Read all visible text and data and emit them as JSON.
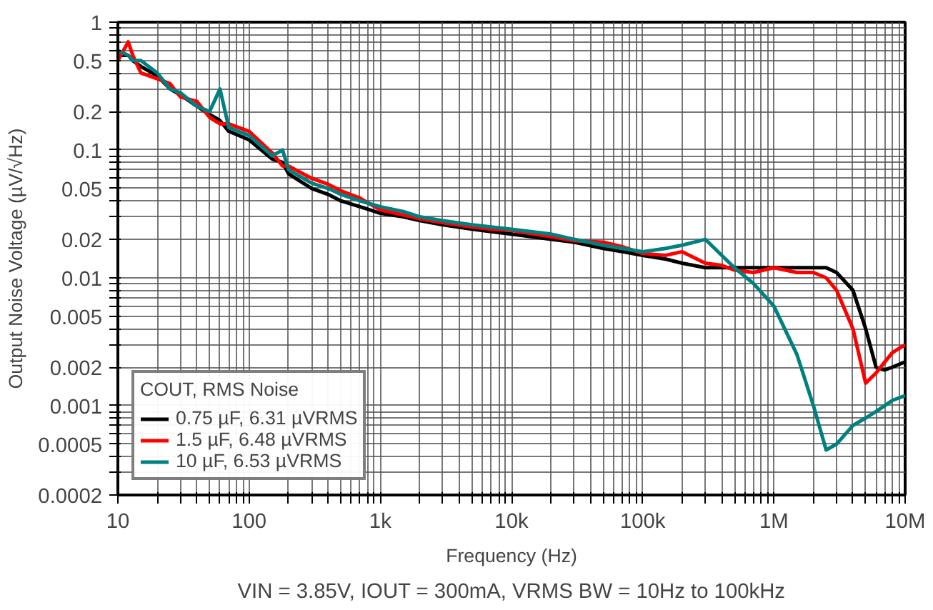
{
  "chart_data": {
    "type": "line",
    "xlabel": "Frequency (Hz)",
    "ylabel": "Output Noise Voltage (µV/√Hz)",
    "legend_title": "COUT, RMS Noise",
    "annotations": [
      "VIN = 3.85V, IOUT = 300mA, VRMS BW = 10Hz to 100kHz"
    ],
    "log": "xy",
    "grid": true,
    "legend": "bottom left",
    "line_style": "solid",
    "xlim": [
      10,
      10000000
    ],
    "ylim": [
      0.0002,
      1
    ],
    "xticks": [
      10,
      {
        "value": 20,
        "label": null
      },
      {
        "value": 30,
        "label": null
      },
      {
        "value": 40,
        "label": null
      },
      {
        "value": 50,
        "label": null
      },
      {
        "value": 60,
        "label": null
      },
      {
        "value": 70,
        "label": null
      },
      {
        "value": 80,
        "label": null
      },
      {
        "value": 90,
        "label": null
      },
      100,
      {
        "value": 200,
        "label": null
      },
      {
        "value": 300,
        "label": null
      },
      {
        "value": 400,
        "label": null
      },
      {
        "value": 500,
        "label": null
      },
      {
        "value": 600,
        "label": null
      },
      {
        "value": 700,
        "label": null
      },
      {
        "value": 800,
        "label": null
      },
      {
        "value": 900,
        "label": null
      },
      {
        "value": 1000,
        "label": "1k"
      },
      {
        "value": 2000,
        "label": null
      },
      {
        "value": 3000,
        "label": null
      },
      {
        "value": 4000,
        "label": null
      },
      {
        "value": 5000,
        "label": null
      },
      {
        "value": 6000,
        "label": null
      },
      {
        "value": 7000,
        "label": null
      },
      {
        "value": 8000,
        "label": null
      },
      {
        "value": 9000,
        "label": null
      },
      {
        "value": 10000,
        "label": "10k"
      },
      {
        "value": 20000,
        "label": null
      },
      {
        "value": 30000,
        "label": null
      },
      {
        "value": 40000,
        "label": null
      },
      {
        "value": 50000,
        "label": null
      },
      {
        "value": 60000,
        "label": null
      },
      {
        "value": 70000,
        "label": null
      },
      {
        "value": 80000,
        "label": null
      },
      {
        "value": 90000,
        "label": null
      },
      {
        "value": 100000,
        "label": "100k"
      },
      {
        "value": 200000,
        "label": null
      },
      {
        "value": 300000,
        "label": null
      },
      {
        "value": 400000,
        "label": null
      },
      {
        "value": 500000,
        "label": null
      },
      {
        "value": 600000,
        "label": null
      },
      {
        "value": 700000,
        "label": null
      },
      {
        "value": 800000,
        "label": null
      },
      {
        "value": 900000,
        "label": null
      },
      {
        "value": 1000000,
        "label": "1M"
      },
      {
        "value": 2000000,
        "label": null
      },
      {
        "value": 3000000,
        "label": null
      },
      {
        "value": 4000000,
        "label": null
      },
      {
        "value": 5000000,
        "label": null
      },
      {
        "value": 6000000,
        "label": null
      },
      {
        "value": 7000000,
        "label": null
      },
      {
        "value": 8000000,
        "label": null
      },
      {
        "value": 9000000,
        "label": null
      },
      {
        "value": 10000000,
        "label": "10M"
      }
    ],
    "yticks": [
      0.0002,
      {
        "value": 0.0003,
        "label": null
      },
      {
        "value": 0.0004,
        "label": null
      },
      0.0005,
      {
        "value": 0.0006,
        "label": null
      },
      {
        "value": 0.0007,
        "label": null
      },
      {
        "value": 0.0008,
        "label": null
      },
      {
        "value": 0.0009,
        "label": null
      },
      0.001,
      0.002,
      {
        "value": 0.003,
        "label": null
      },
      {
        "value": 0.004,
        "label": null
      },
      0.005,
      {
        "value": 0.006,
        "label": null
      },
      {
        "value": 0.007,
        "label": null
      },
      {
        "value": 0.008,
        "label": null
      },
      {
        "value": 0.009,
        "label": null
      },
      0.01,
      0.02,
      {
        "value": 0.03,
        "label": null
      },
      {
        "value": 0.04,
        "label": null
      },
      0.05,
      {
        "value": 0.06,
        "label": null
      },
      {
        "value": 0.07,
        "label": null
      },
      {
        "value": 0.08,
        "label": null
      },
      {
        "value": 0.09,
        "label": null
      },
      0.1,
      0.2,
      {
        "value": 0.3,
        "label": null
      },
      {
        "value": 0.4,
        "label": null
      },
      0.5,
      {
        "value": 0.6,
        "label": null
      },
      {
        "value": 0.7,
        "label": null
      },
      {
        "value": 0.8,
        "label": null
      },
      {
        "value": 0.9,
        "label": null
      },
      1
    ],
    "x": [
      10,
      12,
      13,
      15,
      20,
      25,
      30,
      40,
      50,
      60,
      70,
      100,
      150,
      180,
      200,
      300,
      400,
      500,
      700,
      1000,
      1500,
      2000,
      3000,
      5000,
      7000,
      10000,
      20000,
      30000,
      50000,
      70000,
      100000,
      150000,
      200000,
      300000,
      400000,
      500000,
      700000,
      1000000,
      1500000,
      2000000,
      2500000,
      3000000,
      4000000,
      5000000,
      6000000,
      7000000,
      8000000,
      10000000
    ],
    "series": [
      {
        "name": "0.75 µF, 6.31 µVRMS",
        "color": "#000000",
        "values": [
          0.55,
          0.55,
          0.5,
          0.45,
          0.38,
          0.3,
          0.27,
          0.22,
          0.19,
          0.17,
          0.14,
          0.12,
          0.085,
          0.08,
          0.065,
          0.05,
          0.045,
          0.04,
          0.036,
          0.032,
          0.03,
          0.028,
          0.026,
          0.024,
          0.023,
          0.022,
          0.02,
          0.019,
          0.017,
          0.016,
          0.015,
          0.014,
          0.013,
          0.012,
          0.012,
          0.012,
          0.012,
          0.012,
          0.012,
          0.012,
          0.012,
          0.011,
          0.008,
          0.004,
          0.002,
          0.0019,
          0.002,
          0.0022
        ]
      },
      {
        "name": "1.5 µF, 6.48 µVRMS",
        "color": "#ff0000",
        "values": [
          0.5,
          0.7,
          0.55,
          0.4,
          0.36,
          0.33,
          0.26,
          0.24,
          0.18,
          0.16,
          0.16,
          0.14,
          0.095,
          0.075,
          0.075,
          0.06,
          0.054,
          0.048,
          0.042,
          0.034,
          0.031,
          0.029,
          0.027,
          0.025,
          0.024,
          0.0235,
          0.021,
          0.0195,
          0.019,
          0.0175,
          0.0155,
          0.015,
          0.016,
          0.013,
          0.0125,
          0.0115,
          0.011,
          0.012,
          0.011,
          0.011,
          0.01,
          0.008,
          0.004,
          0.0015,
          0.0018,
          0.0022,
          0.0026,
          0.003
        ]
      },
      {
        "name": "10 µF, 6.53 µVRMS",
        "color": "#008080",
        "values": [
          0.6,
          0.55,
          0.5,
          0.5,
          0.4,
          0.3,
          0.28,
          0.22,
          0.2,
          0.3,
          0.15,
          0.13,
          0.09,
          0.1,
          0.07,
          0.055,
          0.05,
          0.045,
          0.04,
          0.036,
          0.033,
          0.03,
          0.028,
          0.026,
          0.025,
          0.024,
          0.022,
          0.02,
          0.018,
          0.017,
          0.016,
          0.017,
          0.018,
          0.02,
          0.015,
          0.012,
          0.009,
          0.006,
          0.0025,
          0.001,
          0.00045,
          0.0005,
          0.0007,
          0.0008,
          0.0009,
          0.001,
          0.0011,
          0.0012
        ]
      }
    ]
  }
}
